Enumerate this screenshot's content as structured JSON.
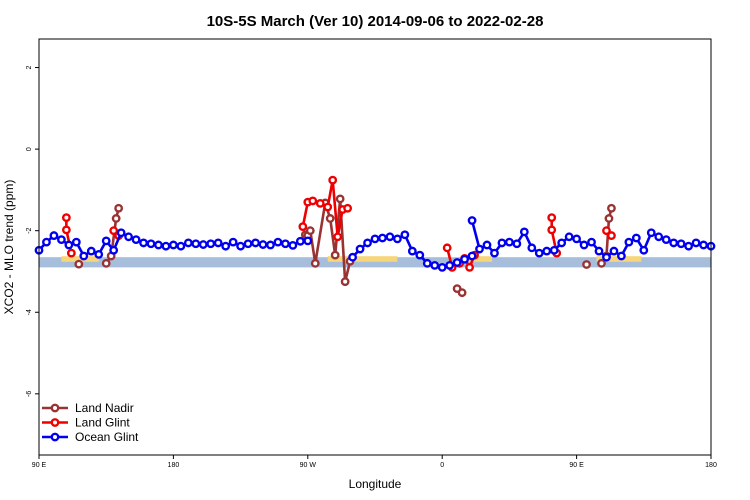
{
  "chart_data": {
    "type": "line",
    "title": "10S-5S March (Ver 10)   2014-09-06 to 2022-02-28",
    "xlabel": "Longitude",
    "ylabel": "XCO2 - MLO trend (ppm)",
    "xlim": [
      -90,
      180
    ],
    "ylim": [
      -7.5,
      2.7
    ],
    "x_ticks": [
      {
        "value": -90,
        "label": "90 E"
      },
      {
        "value": -36,
        "label": "180"
      },
      {
        "value": 18,
        "label": "90 W"
      },
      {
        "value": 72,
        "label": "0"
      },
      {
        "value": 126,
        "label": "90 E"
      },
      {
        "value": 180,
        "label": "180"
      }
    ],
    "y_ticks": [
      {
        "value": 2,
        "label": "2"
      },
      {
        "value": 0,
        "label": "0"
      },
      {
        "value": -2,
        "label": "-2"
      },
      {
        "value": -4,
        "label": "-4"
      },
      {
        "value": -6,
        "label": "-6"
      }
    ],
    "grid": false,
    "legend_position": "bottom-left",
    "reference_band": {
      "y_min": -2.9,
      "y_max": -2.65,
      "color": "#a6bddb"
    },
    "land_band": {
      "color": "#f7d57a",
      "ranges": [
        [
          -81,
          -66
        ],
        [
          26,
          54
        ],
        [
          82,
          92
        ],
        [
          134,
          152
        ]
      ]
    },
    "series": [
      {
        "name": "Land Nadir",
        "color": "#993333",
        "segments": [
          {
            "x": [
              -74
            ],
            "y": [
              -2.82
            ]
          },
          {
            "x": [
              -63,
              -61,
              -59,
              -58
            ],
            "y": [
              -2.8,
              -2.62,
              -1.7,
              -1.45
            ]
          },
          {
            "x": [
              17,
              18,
              19,
              21,
              25,
              27,
              29,
              31,
              33,
              35
            ],
            "y": [
              -2.1,
              -2.12,
              -2.0,
              -2.8,
              -1.32,
              -1.7,
              -2.6,
              -1.22,
              -3.25,
              -2.75
            ]
          },
          {
            "x": [
              78,
              80
            ],
            "y": [
              -3.42,
              -3.52
            ]
          },
          {
            "x": [
              130
            ],
            "y": [
              -2.83
            ]
          },
          {
            "x": [
              136,
              138,
              139,
              140
            ],
            "y": [
              -2.8,
              -2.62,
              -1.7,
              -1.45
            ]
          }
        ]
      },
      {
        "name": "Land Glint",
        "color": "#ee0000",
        "segments": [
          {
            "x": [
              -79,
              -79,
              -77
            ],
            "y": [
              -1.68,
              -1.98,
              -2.55
            ]
          },
          {
            "x": [
              -60,
              -58
            ],
            "y": [
              -2.0,
              -2.12
            ]
          },
          {
            "x": [
              16,
              18,
              20,
              23,
              26,
              28,
              30,
              32,
              34
            ],
            "y": [
              -1.9,
              -1.3,
              -1.27,
              -1.33,
              -1.42,
              -0.76,
              -2.15,
              -1.48,
              -1.45
            ]
          },
          {
            "x": [
              74,
              76,
              79,
              81,
              83,
              85
            ],
            "y": [
              -2.42,
              -2.9,
              -2.8,
              -2.68,
              -2.9,
              -2.6
            ]
          },
          {
            "x": [
              116,
              116,
              118
            ],
            "y": [
              -1.68,
              -1.98,
              -2.55
            ]
          },
          {
            "x": [
              138,
              140
            ],
            "y": [
              -2.0,
              -2.12
            ]
          }
        ]
      },
      {
        "name": "Ocean Glint",
        "color": "#0000ee",
        "segments": [
          {
            "x": [
              -90,
              -87,
              -84,
              -81,
              -78,
              -75,
              -72,
              -69,
              -66,
              -63,
              -60,
              -57,
              -54,
              -51,
              -48,
              -45,
              -42,
              -39,
              -36,
              -33,
              -30,
              -27,
              -24,
              -21,
              -18,
              -15,
              -12,
              -9,
              -6,
              -3,
              0,
              3,
              6,
              9,
              12,
              15,
              18
            ],
            "y": [
              -2.48,
              -2.28,
              -2.12,
              -2.22,
              -2.35,
              -2.28,
              -2.62,
              -2.5,
              -2.58,
              -2.25,
              -2.48,
              -2.05,
              -2.15,
              -2.22,
              -2.3,
              -2.32,
              -2.35,
              -2.38,
              -2.35,
              -2.38,
              -2.3,
              -2.32,
              -2.34,
              -2.32,
              -2.3,
              -2.38,
              -2.28,
              -2.38,
              -2.32,
              -2.3,
              -2.34,
              -2.35,
              -2.28,
              -2.32,
              -2.36,
              -2.26,
              -2.25
            ]
          },
          {
            "x": [
              36,
              39,
              42,
              45,
              48,
              51,
              54,
              57,
              60,
              63,
              66,
              69,
              72,
              75,
              78,
              81,
              84
            ],
            "y": [
              -2.65,
              -2.45,
              -2.3,
              -2.2,
              -2.18,
              -2.15,
              -2.2,
              -2.1,
              -2.5,
              -2.6,
              -2.8,
              -2.85,
              -2.9,
              -2.85,
              -2.78,
              -2.7,
              -2.62
            ]
          },
          {
            "x": [
              84,
              87,
              90,
              93,
              96,
              99,
              102,
              105,
              108,
              111,
              114,
              117,
              120,
              123,
              126,
              129,
              132,
              135,
              138,
              141,
              144,
              147,
              150,
              153,
              156,
              159,
              162,
              165,
              168,
              171,
              174,
              177,
              180
            ],
            "y": [
              -1.75,
              -2.45,
              -2.35,
              -2.55,
              -2.3,
              -2.28,
              -2.32,
              -2.03,
              -2.42,
              -2.55,
              -2.5,
              -2.48,
              -2.3,
              -2.15,
              -2.2,
              -2.35,
              -2.28,
              -2.5,
              -2.65,
              -2.5,
              -2.62,
              -2.28,
              -2.18,
              -2.48,
              -2.05,
              -2.15,
              -2.22,
              -2.3,
              -2.32,
              -2.38,
              -2.3,
              -2.35,
              -2.38
            ]
          }
        ]
      }
    ]
  }
}
